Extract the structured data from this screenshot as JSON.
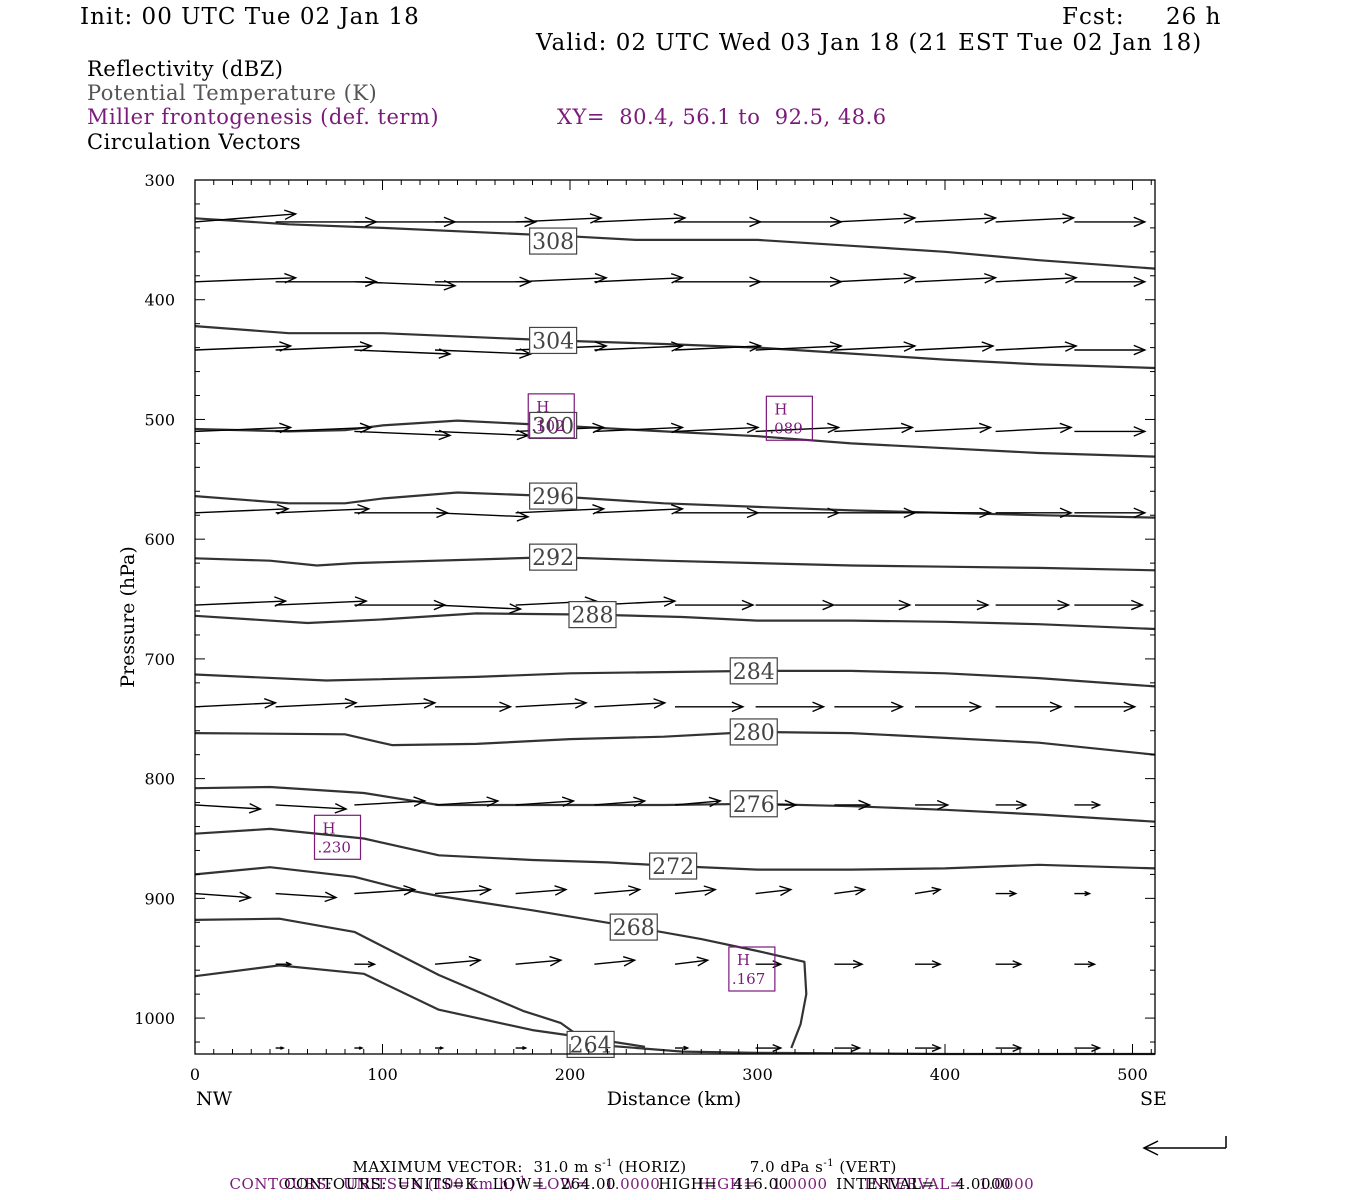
{
  "header": {
    "init": "Init: 00 UTC Tue 02 Jan 18",
    "fcst_label": "Fcst:",
    "fcst_value": "26 h",
    "valid": "Valid: 02 UTC Wed 03 Jan 18 (21 EST Tue 02 Jan 18)"
  },
  "legend": {
    "reflectivity": "Reflectivity (dBZ)",
    "theta": "Potential Temperature (K)",
    "frontogenesis": "Miller frontogenesis (def. term)",
    "xy": "XY=  80.4, 56.1 to  92.5, 48.6",
    "vectors": "Circulation Vectors"
  },
  "colors": {
    "purple": "#7b1a7b",
    "contour": "#333333",
    "theta_legend": "#555555"
  },
  "chart_data": {
    "type": "line",
    "xlabel": "Distance (km)",
    "ylabel": "Pressure (hPa)",
    "xlim": [
      0,
      512
    ],
    "ylim": [
      1030,
      300
    ],
    "y_scale": "linear-inverted",
    "x_ticks": [
      "0",
      "100",
      "200",
      "300",
      "400",
      "500"
    ],
    "y_ticks": [
      "300",
      "400",
      "500",
      "600",
      "700",
      "800",
      "900",
      "1000"
    ],
    "endpoints": {
      "left": "NW",
      "right": "SE"
    },
    "theta_contours": [
      {
        "label": "308",
        "label_at": [
          191,
          351
        ],
        "points": [
          [
            0,
            332
          ],
          [
            50,
            337
          ],
          [
            100,
            340
          ],
          [
            200,
            347
          ],
          [
            235,
            350
          ],
          [
            300,
            350
          ],
          [
            350,
            355
          ],
          [
            400,
            360
          ],
          [
            450,
            367
          ],
          [
            512,
            374
          ]
        ]
      },
      {
        "label": "304",
        "label_at": [
          191,
          434
        ],
        "points": [
          [
            0,
            422
          ],
          [
            50,
            428
          ],
          [
            100,
            428
          ],
          [
            191,
            434
          ],
          [
            250,
            437
          ],
          [
            300,
            440
          ],
          [
            350,
            445
          ],
          [
            400,
            450
          ],
          [
            450,
            454
          ],
          [
            512,
            457
          ]
        ]
      },
      {
        "label": "300",
        "label_at": [
          191,
          505
        ],
        "points": [
          [
            0,
            508
          ],
          [
            50,
            510
          ],
          [
            80,
            509
          ],
          [
            100,
            505
          ],
          [
            140,
            501
          ],
          [
            191,
            505
          ],
          [
            250,
            510
          ],
          [
            300,
            514
          ],
          [
            350,
            520
          ],
          [
            400,
            524
          ],
          [
            450,
            528
          ],
          [
            512,
            531
          ]
        ]
      },
      {
        "label": "296",
        "label_at": [
          191,
          564
        ],
        "points": [
          [
            0,
            564
          ],
          [
            50,
            570
          ],
          [
            80,
            570
          ],
          [
            100,
            566
          ],
          [
            140,
            561
          ],
          [
            191,
            564
          ],
          [
            250,
            570
          ],
          [
            300,
            573
          ],
          [
            350,
            576
          ],
          [
            400,
            578
          ],
          [
            450,
            580
          ],
          [
            512,
            582
          ]
        ]
      },
      {
        "label": "292",
        "label_at": [
          191,
          615
        ],
        "points": [
          [
            0,
            616
          ],
          [
            40,
            618
          ],
          [
            65,
            622
          ],
          [
            85,
            620
          ],
          [
            150,
            617
          ],
          [
            191,
            615
          ],
          [
            250,
            618
          ],
          [
            300,
            620
          ],
          [
            350,
            622
          ],
          [
            400,
            623
          ],
          [
            450,
            624
          ],
          [
            512,
            626
          ]
        ]
      },
      {
        "label": "288",
        "label_at": [
          212,
          663
        ],
        "points": [
          [
            0,
            664
          ],
          [
            60,
            670
          ],
          [
            100,
            667
          ],
          [
            150,
            662
          ],
          [
            212,
            663
          ],
          [
            260,
            665
          ],
          [
            300,
            668
          ],
          [
            350,
            668
          ],
          [
            400,
            669
          ],
          [
            450,
            671
          ],
          [
            512,
            675
          ]
        ]
      },
      {
        "label": "284",
        "label_at": [
          298,
          710
        ],
        "points": [
          [
            0,
            713
          ],
          [
            70,
            718
          ],
          [
            150,
            715
          ],
          [
            200,
            712
          ],
          [
            250,
            711
          ],
          [
            298,
            710
          ],
          [
            350,
            710
          ],
          [
            400,
            712
          ],
          [
            450,
            716
          ],
          [
            512,
            723
          ]
        ]
      },
      {
        "label": "280",
        "label_at": [
          298,
          761
        ],
        "points": [
          [
            0,
            762
          ],
          [
            80,
            763
          ],
          [
            105,
            772
          ],
          [
            150,
            771
          ],
          [
            200,
            767
          ],
          [
            250,
            765
          ],
          [
            298,
            761
          ],
          [
            350,
            762
          ],
          [
            400,
            766
          ],
          [
            450,
            770
          ],
          [
            512,
            780
          ]
        ]
      },
      {
        "label": "276",
        "label_at": [
          298,
          821
        ],
        "points": [
          [
            0,
            808
          ],
          [
            40,
            807
          ],
          [
            90,
            812
          ],
          [
            130,
            822
          ],
          [
            180,
            822
          ],
          [
            250,
            822
          ],
          [
            298,
            821
          ],
          [
            350,
            823
          ],
          [
            400,
            826
          ],
          [
            450,
            830
          ],
          [
            512,
            836
          ]
        ]
      },
      {
        "label": "272",
        "label_at": [
          255,
          873
        ],
        "points": [
          [
            0,
            846
          ],
          [
            40,
            842
          ],
          [
            90,
            850
          ],
          [
            130,
            864
          ],
          [
            180,
            868
          ],
          [
            220,
            870
          ],
          [
            255,
            873
          ],
          [
            300,
            876
          ],
          [
            350,
            876
          ],
          [
            400,
            875
          ],
          [
            450,
            872
          ],
          [
            512,
            875
          ]
        ]
      },
      {
        "label": "268",
        "label_at": [
          234,
          924
        ],
        "points": [
          [
            0,
            880
          ],
          [
            40,
            874
          ],
          [
            85,
            882
          ],
          [
            110,
            892
          ],
          [
            130,
            898
          ],
          [
            180,
            910
          ],
          [
            234,
            924
          ],
          [
            270,
            934
          ],
          [
            300,
            944
          ],
          [
            325,
            953
          ],
          [
            326,
            980
          ],
          [
            323,
            1005
          ],
          [
            318,
            1025
          ]
        ]
      },
      {
        "label": "264",
        "label_at": [
          211,
          1022
        ],
        "points": [
          [
            0,
            918
          ],
          [
            45,
            917
          ],
          [
            85,
            928
          ],
          [
            130,
            964
          ],
          [
            175,
            994
          ],
          [
            195,
            1004
          ],
          [
            211,
            1022
          ],
          [
            260,
            1028
          ],
          [
            300,
            1029
          ],
          [
            400,
            1030
          ],
          [
            512,
            1030
          ]
        ]
      },
      {
        "label": "",
        "points": [
          [
            0,
            965
          ],
          [
            45,
            956
          ],
          [
            90,
            963
          ],
          [
            130,
            993
          ],
          [
            180,
            1010
          ],
          [
            211,
            1017
          ],
          [
            240,
            1024
          ]
        ]
      }
    ],
    "frontogenesis_maxima": [
      {
        "mark": "H",
        "value": ".102",
        "x": 190,
        "p": 497
      },
      {
        "mark": "H",
        "value": ".089",
        "x": 317,
        "p": 499
      },
      {
        "mark": "H",
        "value": ".230",
        "x": 76,
        "p": 849
      },
      {
        "mark": "H",
        "value": ".167",
        "x": 297,
        "p": 959
      }
    ],
    "vector_rows": [
      {
        "p": 335,
        "x": [
          0,
          43,
          85,
          128,
          171,
          213,
          256,
          299,
          341,
          384,
          427,
          469
        ],
        "u": [
          40,
          40,
          40,
          40,
          34,
          36,
          34,
          34,
          32,
          32,
          31,
          28
        ],
        "w": [
          -2,
          0,
          0,
          0,
          -1,
          -1,
          0,
          0,
          -1,
          -1,
          -1,
          0
        ]
      },
      {
        "p": 385,
        "x": [
          0,
          43,
          85,
          128,
          171,
          213,
          256,
          299,
          341,
          384,
          427,
          469
        ],
        "u": [
          40,
          40,
          40,
          38,
          36,
          35,
          34,
          34,
          32,
          32,
          32,
          28
        ],
        "w": [
          -1,
          0,
          1,
          0,
          -1,
          -1,
          0,
          0,
          -1,
          -1,
          -1,
          0
        ]
      },
      {
        "p": 442,
        "x": [
          0,
          43,
          85,
          128,
          171,
          213,
          256,
          299,
          341,
          384,
          427,
          469
        ],
        "u": [
          38,
          38,
          38,
          38,
          36,
          35,
          34,
          34,
          32,
          31,
          32,
          28
        ],
        "w": [
          -1,
          -1,
          1,
          1,
          -1,
          -1,
          -1,
          -1,
          -1,
          -1,
          -1,
          0
        ]
      },
      {
        "p": 510,
        "x": [
          0,
          43,
          85,
          128,
          171,
          213,
          256,
          299,
          341,
          384,
          427,
          469
        ],
        "u": [
          38,
          38,
          38,
          37,
          35,
          35,
          33,
          33,
          31,
          30,
          30,
          28
        ],
        "w": [
          -1,
          -1,
          1,
          1,
          -1,
          -1,
          -1,
          -1,
          -1,
          -1,
          -1,
          0
        ]
      },
      {
        "p": 578,
        "x": [
          0,
          43,
          85,
          128,
          171,
          213,
          256,
          299,
          341,
          384,
          427,
          469
        ],
        "u": [
          37,
          37,
          37,
          37,
          35,
          35,
          33,
          33,
          32,
          30,
          30,
          28
        ],
        "w": [
          -1,
          -1,
          0,
          1,
          -1,
          -1,
          0,
          0,
          0,
          0,
          0,
          0
        ]
      },
      {
        "p": 655,
        "x": [
          0,
          43,
          85,
          128,
          171,
          213,
          256,
          299,
          341,
          384,
          427,
          469
        ],
        "u": [
          36,
          36,
          36,
          34,
          32,
          32,
          31,
          31,
          30,
          29,
          29,
          27
        ],
        "w": [
          -1,
          -1,
          0,
          1,
          -1,
          -1,
          0,
          0,
          0,
          0,
          0,
          0
        ]
      },
      {
        "p": 740,
        "x": [
          0,
          43,
          85,
          128,
          171,
          213,
          256,
          299,
          341,
          384,
          427,
          469
        ],
        "u": [
          32,
          32,
          32,
          30,
          28,
          28,
          27,
          27,
          27,
          26,
          26,
          24
        ],
        "w": [
          -1,
          -1,
          -1,
          0,
          -1,
          -1,
          0,
          0,
          0,
          0,
          0,
          0
        ]
      },
      {
        "p": 822,
        "x": [
          0,
          43,
          85,
          128,
          171,
          213,
          256,
          299,
          341,
          384,
          427,
          469
        ],
        "u": [
          26,
          28,
          28,
          25,
          23,
          20,
          18,
          16,
          14,
          13,
          12,
          10
        ],
        "w": [
          1,
          1,
          -1,
          -1,
          -1,
          -1,
          -1,
          0,
          0,
          0,
          0,
          0
        ]
      },
      {
        "p": 896,
        "x": [
          0,
          43,
          85,
          128,
          171,
          213,
          256,
          299,
          341,
          384,
          427,
          469
        ],
        "u": [
          22,
          24,
          24,
          22,
          20,
          18,
          16,
          14,
          12,
          10,
          8,
          6
        ],
        "w": [
          1,
          1,
          -1,
          -1,
          -1,
          -1,
          -1,
          -1,
          -1,
          -1,
          0,
          0
        ]
      },
      {
        "p": 955,
        "x": [
          43,
          85,
          128,
          171,
          213,
          256,
          299,
          341,
          384,
          427,
          469
        ],
        "u": [
          6,
          8,
          18,
          18,
          16,
          13,
          10,
          11,
          10,
          10,
          8
        ],
        "w": [
          0,
          0,
          -1,
          -1,
          -1,
          -1,
          0,
          0,
          0,
          0,
          0
        ]
      },
      {
        "p": 1025,
        "x": [
          43,
          85,
          128,
          171,
          213,
          256,
          299,
          341,
          384,
          427,
          469
        ],
        "u": [
          3,
          3,
          3,
          4,
          5,
          5,
          10,
          10,
          10,
          10,
          10
        ],
        "w": [
          0,
          0,
          0,
          0,
          0,
          0,
          0,
          0,
          0,
          0,
          0
        ]
      }
    ],
    "grid": false
  },
  "footer": {
    "maxvec_label": "MAXIMUM VECTOR:",
    "maxvec_h": "31.0 m s",
    "maxvec_h_exp": "-1",
    "maxvec_h_unit": "(HORIZ)",
    "maxvec_v": "7.0 dPa s",
    "maxvec_v_exp": "-1",
    "maxvec_v_unit": "(VERT)",
    "fronto_contours_a": "CONTOURS:  UNITS=K (100 km h)",
    "fronto_contours_exp": "-1",
    "fronto_contours_b": "  LOW=   1.0000       HIGH=   1.0000       INTERVAL=   1.0000",
    "theta_contours": "CONTOURS:  UNITS=K   LOW=   264.00        HIGH=   416.00         INTERVAL=    4.0000"
  }
}
